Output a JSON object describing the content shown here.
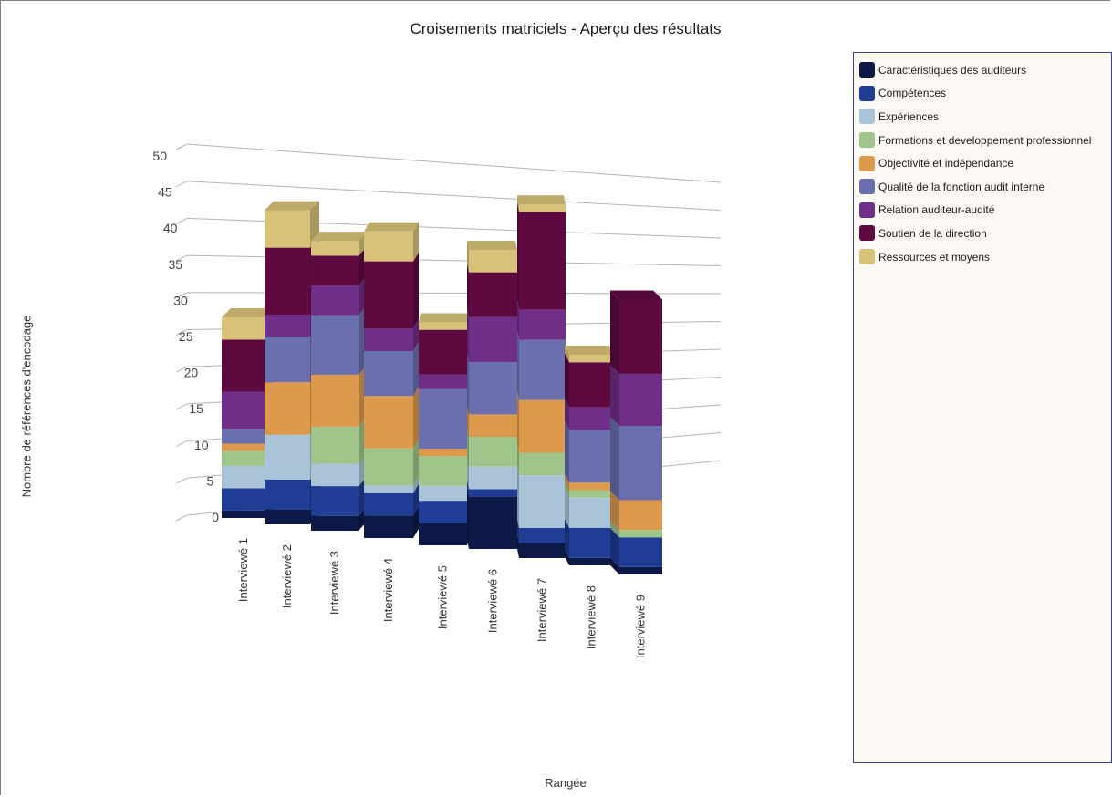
{
  "chart_data": {
    "type": "bar",
    "stacked": true,
    "three_d": true,
    "title": "Croisements matriciels - Aperçu des résultats",
    "xlabel": "Rangée",
    "ylabel": "Nombre de références d'encodage",
    "ylim": [
      0,
      50
    ],
    "yticks": [
      0,
      5,
      10,
      15,
      20,
      25,
      30,
      35,
      40,
      45,
      50
    ],
    "grid": true,
    "legend_position": "right",
    "categories": [
      "Interviewé 1",
      "Interviewé 2",
      "Interviewé 3",
      "Interviewé 4",
      "Interviewé 5",
      "Interviewé 6",
      "Interviewé 7",
      "Interviewé 8",
      "Interviewé 9"
    ],
    "series": [
      {
        "name": "Caractéristiques des auditeurs",
        "color": "#0d1a48",
        "values": [
          1,
          2,
          2,
          3,
          3,
          7,
          2,
          1,
          1
        ]
      },
      {
        "name": "Compétences",
        "color": "#1f3d94",
        "values": [
          3,
          4,
          4,
          3,
          3,
          1,
          2,
          4,
          4
        ]
      },
      {
        "name": "Expériences",
        "color": "#a9c4d8",
        "values": [
          3,
          6,
          3,
          1,
          2,
          3,
          7,
          4,
          0
        ]
      },
      {
        "name": "Formations et developpement professionnel",
        "color": "#9fc58a",
        "values": [
          2,
          0,
          5,
          5,
          4,
          4,
          3,
          1,
          1
        ]
      },
      {
        "name": "Objectivité et indépendance",
        "color": "#de9a4c",
        "values": [
          1,
          7,
          7,
          7,
          1,
          3,
          7,
          1,
          4
        ]
      },
      {
        "name": "Qualité de la fonction audit interne",
        "color": "#6a6fad",
        "values": [
          2,
          6,
          8,
          6,
          8,
          7,
          8,
          7,
          10
        ]
      },
      {
        "name": "Relation auditeur-audité",
        "color": "#6f2e87",
        "values": [
          5,
          3,
          4,
          3,
          2,
          6,
          4,
          3,
          7
        ]
      },
      {
        "name": "Soutien de la direction",
        "color": "#5e0a41",
        "values": [
          7,
          9,
          4,
          9,
          6,
          6,
          13,
          6,
          10
        ]
      },
      {
        "name": "Ressources et moyens",
        "color": "#d8c27a",
        "values": [
          3,
          5,
          2,
          4,
          1,
          3,
          1,
          1,
          0
        ]
      }
    ]
  }
}
